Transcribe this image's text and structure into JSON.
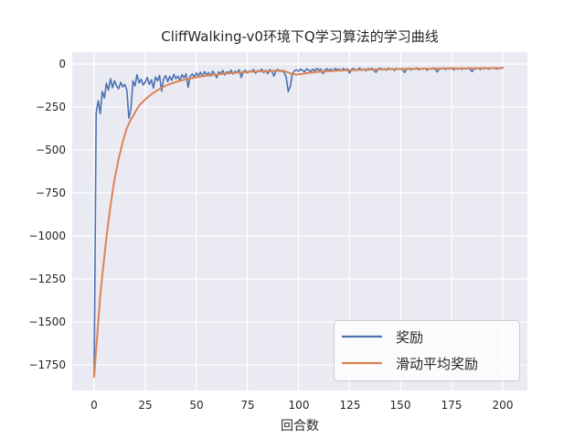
{
  "chart_data": {
    "type": "line",
    "title": "CliffWalking-v0环境下Q学习算法的学习曲线",
    "xlabel": "回合数",
    "ylabel": "",
    "xticks": [
      0,
      25,
      50,
      75,
      100,
      125,
      150,
      175,
      200
    ],
    "xtick_labels": [
      "0",
      "25",
      "50",
      "75",
      "100",
      "125",
      "150",
      "175",
      "200"
    ],
    "yticks": [
      0,
      -250,
      -500,
      -750,
      -1000,
      -1250,
      -1500,
      -1750
    ],
    "ytick_labels": [
      "0",
      "−250",
      "−500",
      "−750",
      "−1000",
      "−1250",
      "−1500",
      "−1750"
    ],
    "xlim": [
      0,
      200
    ],
    "ylim": [
      -1840,
      0
    ],
    "grid": true,
    "plot_background": "#EAEAF2",
    "gridline_color": "#FFFFFF",
    "legend_position": "lower right",
    "series": [
      {
        "name": "奖励",
        "color": "#4C72B0",
        "x_start": 0,
        "x_step": 1,
        "values": [
          -1820,
          -285,
          -213,
          -289,
          -160,
          -198,
          -112,
          -152,
          -86,
          -138,
          -97,
          -128,
          -144,
          -106,
          -133,
          -118,
          -152,
          -315,
          -260,
          -98,
          -128,
          -62,
          -110,
          -88,
          -122,
          -106,
          -78,
          -118,
          -92,
          -140,
          -76,
          -98,
          -66,
          -158,
          -84,
          -68,
          -102,
          -72,
          -94,
          -60,
          -86,
          -70,
          -96,
          -62,
          -80,
          -58,
          -136,
          -72,
          -58,
          -76,
          -52,
          -68,
          -48,
          -72,
          -44,
          -62,
          -50,
          -70,
          -42,
          -58,
          -80,
          -46,
          -56,
          -38,
          -64,
          -44,
          -54,
          -36,
          -58,
          -42,
          -50,
          -34,
          -78,
          -44,
          -36,
          -52,
          -40,
          -46,
          -32,
          -54,
          -38,
          -44,
          -30,
          -50,
          -36,
          -56,
          -32,
          -44,
          -70,
          -38,
          -32,
          -44,
          -36,
          -50,
          -75,
          -160,
          -130,
          -58,
          -40,
          -34,
          -42,
          -30,
          -38,
          -46,
          -28,
          -36,
          -44,
          -30,
          -40,
          -26,
          -36,
          -30,
          -56,
          -34,
          -28,
          -38,
          -30,
          -42,
          -26,
          -34,
          -30,
          -40,
          -26,
          -36,
          -28,
          -52,
          -32,
          -26,
          -38,
          -30,
          -24,
          -36,
          -28,
          -40,
          -26,
          -32,
          -24,
          -38,
          -48,
          -28,
          -24,
          -34,
          -26,
          -36,
          -24,
          -30,
          -26,
          -38,
          -24,
          -32,
          -26,
          -34,
          -50,
          -28,
          -24,
          -34,
          -26,
          -30,
          -22,
          -34,
          -26,
          -30,
          -24,
          -36,
          -26,
          -30,
          -22,
          -32,
          -46,
          -26,
          -30,
          -22,
          -32,
          -26,
          -28,
          -22,
          -34,
          -26,
          -30,
          -24,
          -32,
          -24,
          -28,
          -22,
          -30,
          -44,
          -26,
          -28,
          -22,
          -32,
          -24,
          -28,
          -22,
          -30,
          -24,
          -26,
          -22,
          -30,
          -24,
          -26,
          -20
        ]
      },
      {
        "name": "滑动平均奖励",
        "color": "#DD8452",
        "keypoints": [
          [
            0,
            -1820
          ],
          [
            1,
            -1660
          ],
          [
            2,
            -1500
          ],
          [
            3,
            -1345
          ],
          [
            4,
            -1230
          ],
          [
            5,
            -1120
          ],
          [
            6,
            -1010
          ],
          [
            7,
            -915
          ],
          [
            8,
            -825
          ],
          [
            9,
            -745
          ],
          [
            10,
            -672
          ],
          [
            12,
            -550
          ],
          [
            14,
            -452
          ],
          [
            16,
            -372
          ],
          [
            18,
            -322
          ],
          [
            20,
            -282
          ],
          [
            22,
            -242
          ],
          [
            25,
            -206
          ],
          [
            28,
            -176
          ],
          [
            31,
            -152
          ],
          [
            35,
            -126
          ],
          [
            40,
            -104
          ],
          [
            45,
            -89
          ],
          [
            50,
            -77
          ],
          [
            55,
            -68
          ],
          [
            60,
            -61
          ],
          [
            65,
            -55
          ],
          [
            70,
            -50
          ],
          [
            75,
            -46
          ],
          [
            80,
            -43
          ],
          [
            85,
            -41
          ],
          [
            90,
            -39
          ],
          [
            93,
            -40
          ],
          [
            96,
            -54
          ],
          [
            99,
            -62
          ],
          [
            102,
            -57
          ],
          [
            106,
            -50
          ],
          [
            110,
            -45
          ],
          [
            115,
            -41
          ],
          [
            120,
            -38
          ],
          [
            130,
            -34
          ],
          [
            140,
            -31
          ],
          [
            150,
            -29
          ],
          [
            160,
            -27
          ],
          [
            170,
            -26
          ],
          [
            180,
            -25
          ],
          [
            190,
            -24
          ],
          [
            200,
            -23
          ]
        ]
      }
    ]
  }
}
